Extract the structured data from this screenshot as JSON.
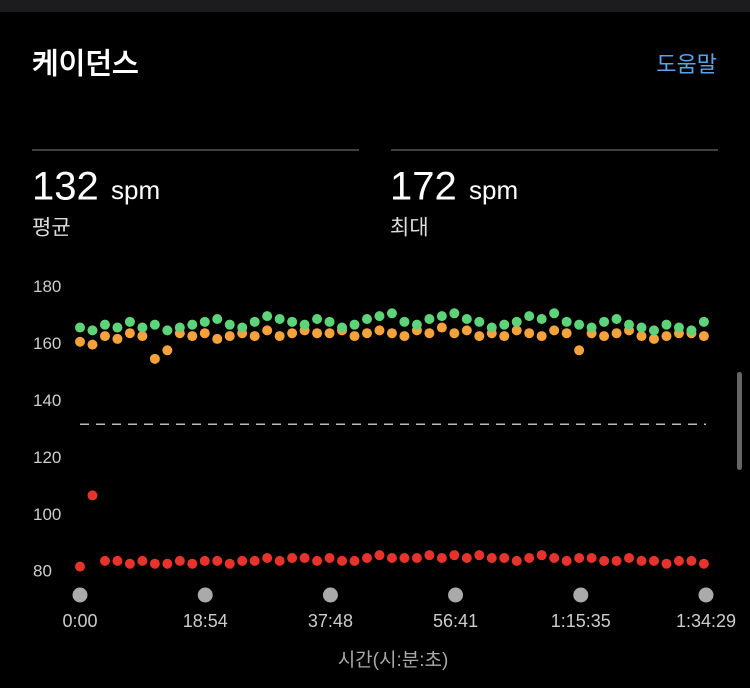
{
  "header": {
    "title": "케이던스",
    "help": "도움말"
  },
  "stats": [
    {
      "value": 132,
      "unit": "spm",
      "label": "평균"
    },
    {
      "value": 172,
      "unit": "spm",
      "label": "최대"
    }
  ],
  "chart_data": {
    "type": "scatter",
    "x_label": "시간(시:분:초)",
    "x": [
      0,
      113,
      226,
      339,
      452,
      565,
      678,
      791,
      904,
      1017,
      1130,
      1243,
      1356,
      1469,
      1582,
      1695,
      1808,
      1921,
      2034,
      2147,
      2260,
      2373,
      2486,
      2599,
      2712,
      2825,
      2938,
      3051,
      3164,
      3277,
      3390,
      3503,
      3616,
      3729,
      3842,
      3955,
      4068,
      4181,
      4294,
      4407,
      4520,
      4633,
      4746,
      4859,
      4972,
      5085,
      5198,
      5311,
      5424,
      5537,
      5650
    ],
    "series": [
      {
        "color": "#f4a23c",
        "values": [
          161,
          160,
          163,
          162,
          164,
          163,
          155,
          158,
          164,
          163,
          164,
          162,
          163,
          164,
          163,
          165,
          163,
          164,
          165,
          164,
          164,
          165,
          163,
          164,
          165,
          164,
          163,
          165,
          164,
          166,
          164,
          165,
          163,
          164,
          163,
          165,
          164,
          163,
          165,
          164,
          158,
          164,
          163,
          164,
          165,
          163,
          162,
          163,
          164,
          164,
          163
        ]
      },
      {
        "color": "#5ed47a",
        "values": [
          166,
          165,
          167,
          166,
          168,
          166,
          167,
          165,
          166,
          167,
          168,
          169,
          167,
          166,
          168,
          170,
          169,
          168,
          167,
          169,
          168,
          166,
          167,
          169,
          170,
          171,
          168,
          167,
          169,
          170,
          171,
          169,
          168,
          166,
          167,
          168,
          170,
          169,
          171,
          168,
          167,
          166,
          168,
          169,
          167,
          166,
          165,
          167,
          166,
          165,
          168
        ]
      },
      {
        "color": "#e8332c",
        "values": [
          82,
          107,
          84,
          84,
          83,
          84,
          83,
          83,
          84,
          83,
          84,
          84,
          83,
          84,
          84,
          85,
          84,
          85,
          85,
          84,
          85,
          84,
          84,
          85,
          86,
          85,
          85,
          85,
          86,
          85,
          86,
          85,
          86,
          85,
          85,
          84,
          85,
          86,
          85,
          84,
          85,
          85,
          84,
          84,
          85,
          84,
          84,
          83,
          84,
          84,
          83
        ]
      }
    ],
    "xlim": [
      0,
      5669
    ],
    "xticks": [
      {
        "value": 0,
        "label": "0:00"
      },
      {
        "value": 1134,
        "label": "18:54"
      },
      {
        "value": 2268,
        "label": "37:48"
      },
      {
        "value": 3401,
        "label": "56:41"
      },
      {
        "value": 4535,
        "label": "1:15:35"
      },
      {
        "value": 5669,
        "label": "1:34:29"
      }
    ],
    "ylim": [
      72,
      182
    ],
    "yticks": [
      80,
      100,
      120,
      140,
      160,
      180
    ]
  }
}
